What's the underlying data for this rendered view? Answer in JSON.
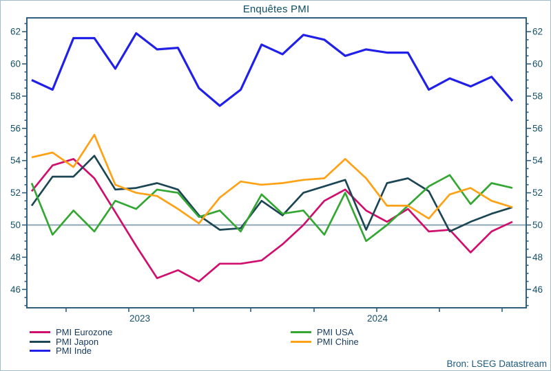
{
  "title": "Enquêtes PMI",
  "source_note": "Bron: LSEG Datastream",
  "colors": {
    "frame": "#2e5f7e",
    "baseline_50": "#8ca6b4",
    "tick_label": "#16506a",
    "outer_border": "#9fbccd"
  },
  "chart_data": {
    "type": "line",
    "title": "Enquêtes PMI",
    "xlabel": "",
    "ylabel": "",
    "ylim": [
      44.9,
      62.9
    ],
    "yticks": [
      46,
      48,
      50,
      52,
      54,
      56,
      58,
      60,
      62
    ],
    "ytick_sides": "both",
    "minor_ytick_step": 0.5,
    "baseline": 50,
    "grid": false,
    "legend_position": "bottom",
    "x_points": 24,
    "x_axis": {
      "tick_positions": [
        0.0716,
        0.202,
        0.3367,
        0.4556,
        0.5874,
        0.7178,
        0.8481,
        0.9785
      ],
      "year_labels": [
        {
          "text": "2023",
          "position": 0.225
        },
        {
          "text": "2024",
          "position": 0.7192
        }
      ]
    },
    "series": [
      {
        "name": "PMI Eurozone",
        "color": "#d00e6d",
        "values": [
          52.1,
          53.7,
          54.1,
          52.9,
          50.8,
          48.7,
          46.7,
          47.2,
          46.5,
          47.6,
          47.6,
          47.8,
          48.8,
          50.0,
          51.5,
          52.2,
          50.9,
          50.2,
          51.0,
          49.6,
          49.7,
          48.3,
          49.6,
          50.2
        ]
      },
      {
        "name": "PMI Japon",
        "color": "#1c4653",
        "values": [
          51.2,
          53.0,
          53.0,
          54.3,
          52.2,
          52.3,
          52.6,
          52.2,
          50.6,
          49.7,
          49.8,
          51.5,
          50.6,
          52.0,
          52.4,
          52.8,
          49.7,
          52.6,
          52.9,
          52.1,
          49.6,
          50.2,
          50.7,
          51.1
        ]
      },
      {
        "name": "PMI Inde",
        "color": "#2020e8",
        "values": [
          59.0,
          58.4,
          61.6,
          61.6,
          59.7,
          61.9,
          60.9,
          61.0,
          58.5,
          57.4,
          58.4,
          61.2,
          60.6,
          61.8,
          61.5,
          60.5,
          60.9,
          60.7,
          60.7,
          58.4,
          59.1,
          58.6,
          59.2,
          57.7
        ]
      },
      {
        "name": "PMI USA",
        "color": "#34a733",
        "values": [
          52.6,
          49.4,
          50.9,
          49.6,
          51.5,
          51.0,
          52.2,
          52.0,
          50.5,
          50.9,
          49.6,
          51.9,
          50.7,
          50.9,
          49.4,
          52.0,
          49.0,
          50.0,
          51.2,
          52.4,
          53.1,
          51.3,
          52.6,
          52.3
        ]
      },
      {
        "name": "PMI Chine",
        "color": "#ffa115",
        "values": [
          54.2,
          54.5,
          53.6,
          55.6,
          52.5,
          52.0,
          51.8,
          51.0,
          50.1,
          51.7,
          52.7,
          52.5,
          52.6,
          52.8,
          52.9,
          54.1,
          52.9,
          51.2,
          51.2,
          50.4,
          51.9,
          52.3,
          51.5,
          51.1
        ]
      }
    ]
  }
}
